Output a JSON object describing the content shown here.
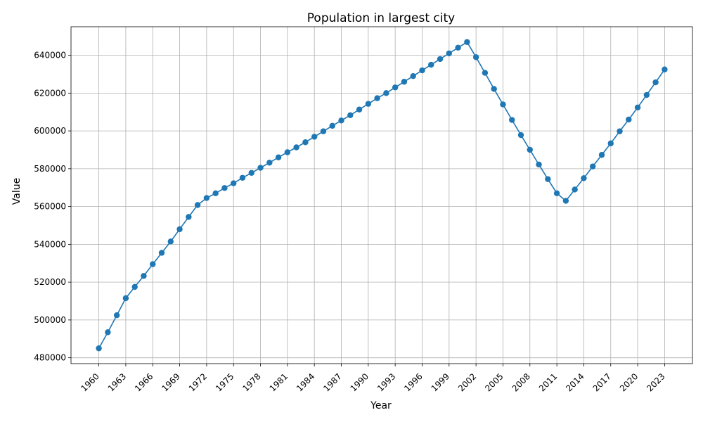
{
  "chart_data": {
    "type": "line",
    "title": "Population in largest city",
    "xlabel": "Year",
    "ylabel": "Value",
    "grid": true,
    "marker": "circle",
    "line_color": "#1f77b4",
    "xlim": [
      1956.9,
      2026.1
    ],
    "ylim": [
      476900,
      655100
    ],
    "x_ticks": [
      1960,
      1963,
      1966,
      1969,
      1972,
      1975,
      1978,
      1981,
      1984,
      1987,
      1990,
      1993,
      1996,
      1999,
      2002,
      2005,
      2008,
      2011,
      2014,
      2017,
      2020,
      2023
    ],
    "y_ticks": [
      480000,
      500000,
      520000,
      540000,
      560000,
      580000,
      600000,
      620000,
      640000
    ],
    "series": [
      {
        "x": [
          1960,
          1961,
          1962,
          1963,
          1964,
          1965,
          1966,
          1967,
          1968,
          1969,
          1970,
          1971,
          1972,
          1973,
          1974,
          1975,
          1976,
          1977,
          1978,
          1979,
          1980,
          1981,
          1982,
          1983,
          1984,
          1985,
          1986,
          1987,
          1988,
          1989,
          1990,
          1991,
          1992,
          1993,
          1994,
          1995,
          1996,
          1997,
          1998,
          1999,
          2000,
          2001,
          2002,
          2003,
          2004,
          2005,
          2006,
          2007,
          2008,
          2009,
          2010,
          2011,
          2012,
          2013,
          2014,
          2015,
          2016,
          2017,
          2018,
          2019,
          2020,
          2021,
          2022,
          2023
        ],
        "y": [
          485000,
          493500,
          502500,
          511500,
          517500,
          523300,
          529500,
          535500,
          541500,
          548000,
          554500,
          560800,
          564500,
          567000,
          569800,
          572300,
          575200,
          577800,
          580500,
          583200,
          586000,
          588700,
          591300,
          594000,
          596900,
          599800,
          602700,
          605500,
          608300,
          611300,
          614300,
          617300,
          620000,
          623000,
          626000,
          629000,
          632000,
          635000,
          638000,
          641000,
          644000,
          647000,
          639000,
          630700,
          622200,
          614000,
          605800,
          597800,
          590000,
          582200,
          574500,
          567000,
          563000,
          569000,
          575000,
          581200,
          587300,
          593400,
          599800,
          606000,
          612400,
          619000,
          625700,
          632500
        ]
      }
    ]
  }
}
